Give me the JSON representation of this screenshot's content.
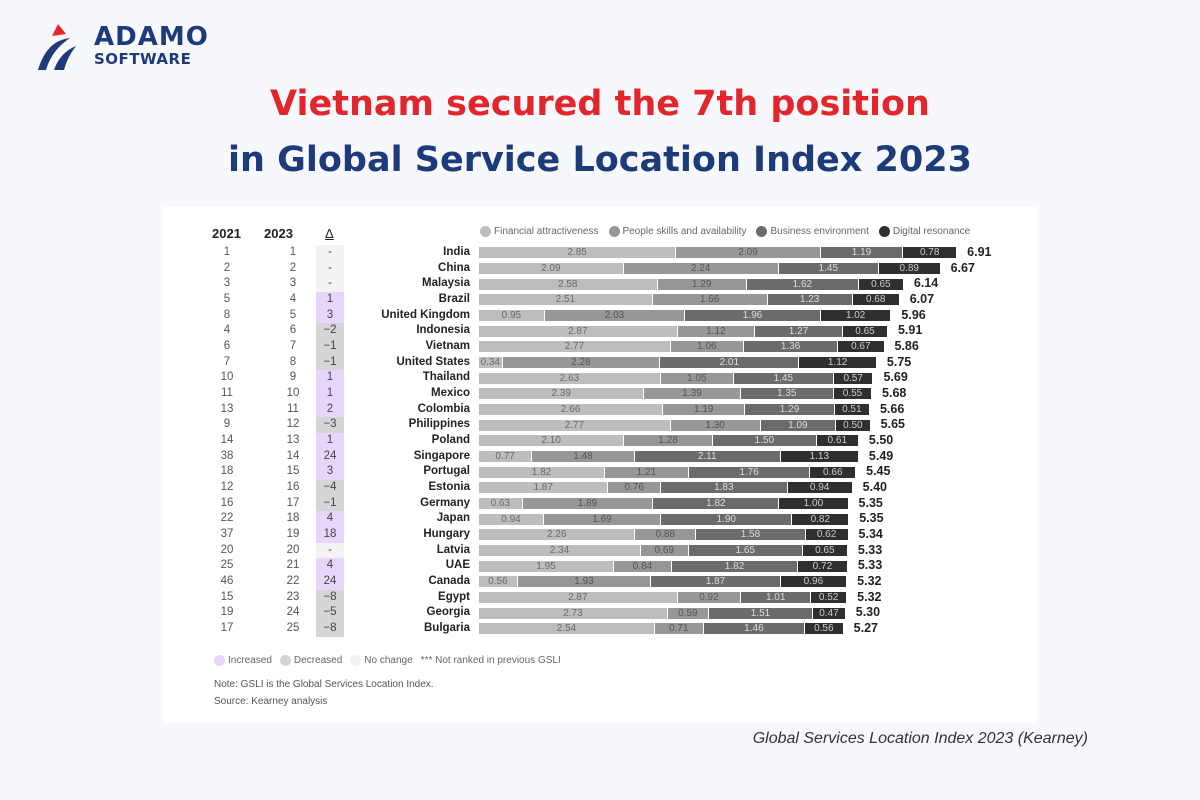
{
  "logo": {
    "line1": "ADAMO",
    "line2": "SOFTWARE"
  },
  "title": {
    "line1": "Vietnam secured the 7th position",
    "line2": "in Global Service Location Index 2023"
  },
  "caption": "Global Services Location Index 2023 (Kearney)",
  "chart_data": {
    "type": "bar",
    "orientation": "horizontal-stacked",
    "column_headers": {
      "y2021": "2021",
      "y2023": "2023",
      "delta": "Δ"
    },
    "legend": [
      "Financial attractiveness",
      "People skills and availability",
      "Business environment",
      "Digital resonance"
    ],
    "colors": [
      "#bdbdbd",
      "#979797",
      "#6b6b6b",
      "#2f2f2f"
    ],
    "delta_colors": {
      "increased": "#e7d6fb",
      "decreased": "#d5d5d5",
      "nochange": "#f3f3f3"
    },
    "categories": [
      "India",
      "China",
      "Malaysia",
      "Brazil",
      "United Kingdom",
      "Indonesia",
      "Vietnam",
      "United States",
      "Thailand",
      "Mexico",
      "Colombia",
      "Philippines",
      "Poland",
      "Singapore",
      "Portugal",
      "Estonia",
      "Germany",
      "Japan",
      "Hungary",
      "Latvia",
      "UAE",
      "Canada",
      "Egypt",
      "Georgia",
      "Bulgaria"
    ],
    "rank_2021": [
      "1",
      "2",
      "3",
      "5",
      "8",
      "4",
      "6",
      "7",
      "10",
      "11",
      "13",
      "9",
      "14",
      "38",
      "18",
      "12",
      "16",
      "22",
      "37",
      "20",
      "25",
      "46",
      "15",
      "19",
      "17"
    ],
    "rank_2023": [
      "1",
      "2",
      "3",
      "4",
      "5",
      "6",
      "7",
      "8",
      "9",
      "10",
      "11",
      "12",
      "13",
      "14",
      "15",
      "16",
      "17",
      "18",
      "19",
      "20",
      "21",
      "22",
      "23",
      "24",
      "25"
    ],
    "delta": [
      "-",
      "-",
      "-",
      "1",
      "3",
      "−2",
      "−1",
      "−1",
      "1",
      "1",
      "2",
      "−3",
      "1",
      "24",
      "3",
      "−4",
      "−1",
      "4",
      "18",
      "-",
      "4",
      "24",
      "−8",
      "−5",
      "−8"
    ],
    "series": [
      {
        "name": "Financial attractiveness",
        "values": [
          2.85,
          2.09,
          2.58,
          2.51,
          0.95,
          2.87,
          2.77,
          0.34,
          2.63,
          2.39,
          2.66,
          2.77,
          2.1,
          0.77,
          1.82,
          1.87,
          0.63,
          0.94,
          2.26,
          2.34,
          1.95,
          0.56,
          2.87,
          2.73,
          2.54
        ]
      },
      {
        "name": "People skills and availability",
        "values": [
          2.09,
          2.24,
          1.29,
          1.66,
          2.03,
          1.12,
          1.06,
          2.28,
          1.05,
          1.39,
          1.19,
          1.3,
          1.28,
          1.48,
          1.21,
          0.76,
          1.89,
          1.69,
          0.88,
          0.69,
          0.84,
          1.93,
          0.92,
          0.59,
          0.71
        ]
      },
      {
        "name": "Business environment",
        "values": [
          1.19,
          1.45,
          1.62,
          1.23,
          1.96,
          1.27,
          1.36,
          2.01,
          1.45,
          1.35,
          1.29,
          1.09,
          1.5,
          2.11,
          1.76,
          1.83,
          1.82,
          1.9,
          1.58,
          1.65,
          1.82,
          1.87,
          1.01,
          1.51,
          1.46
        ]
      },
      {
        "name": "Digital resonance",
        "values": [
          0.78,
          0.89,
          0.65,
          0.68,
          1.02,
          0.65,
          0.67,
          1.12,
          0.57,
          0.55,
          0.51,
          0.5,
          0.61,
          1.13,
          0.66,
          0.94,
          1.0,
          0.82,
          0.62,
          0.65,
          0.72,
          0.96,
          0.52,
          0.47,
          0.56
        ]
      }
    ],
    "totals": [
      "6.91",
      "6.67",
      "6.14",
      "6.07",
      "5.96",
      "5.91",
      "5.86",
      "5.75",
      "5.69",
      "5.68",
      "5.66",
      "5.65",
      "5.50",
      "5.49",
      "5.45",
      "5.40",
      "5.35",
      "5.35",
      "5.34",
      "5.33",
      "5.33",
      "5.32",
      "5.32",
      "5.30",
      "5.27"
    ],
    "change_legend": [
      "Increased",
      "Decreased",
      "No change",
      "*** Not ranked in previous GSLI"
    ],
    "note": "Note: GSLI is the Global Services Location Index.",
    "source": "Source: Kearney analysis"
  }
}
